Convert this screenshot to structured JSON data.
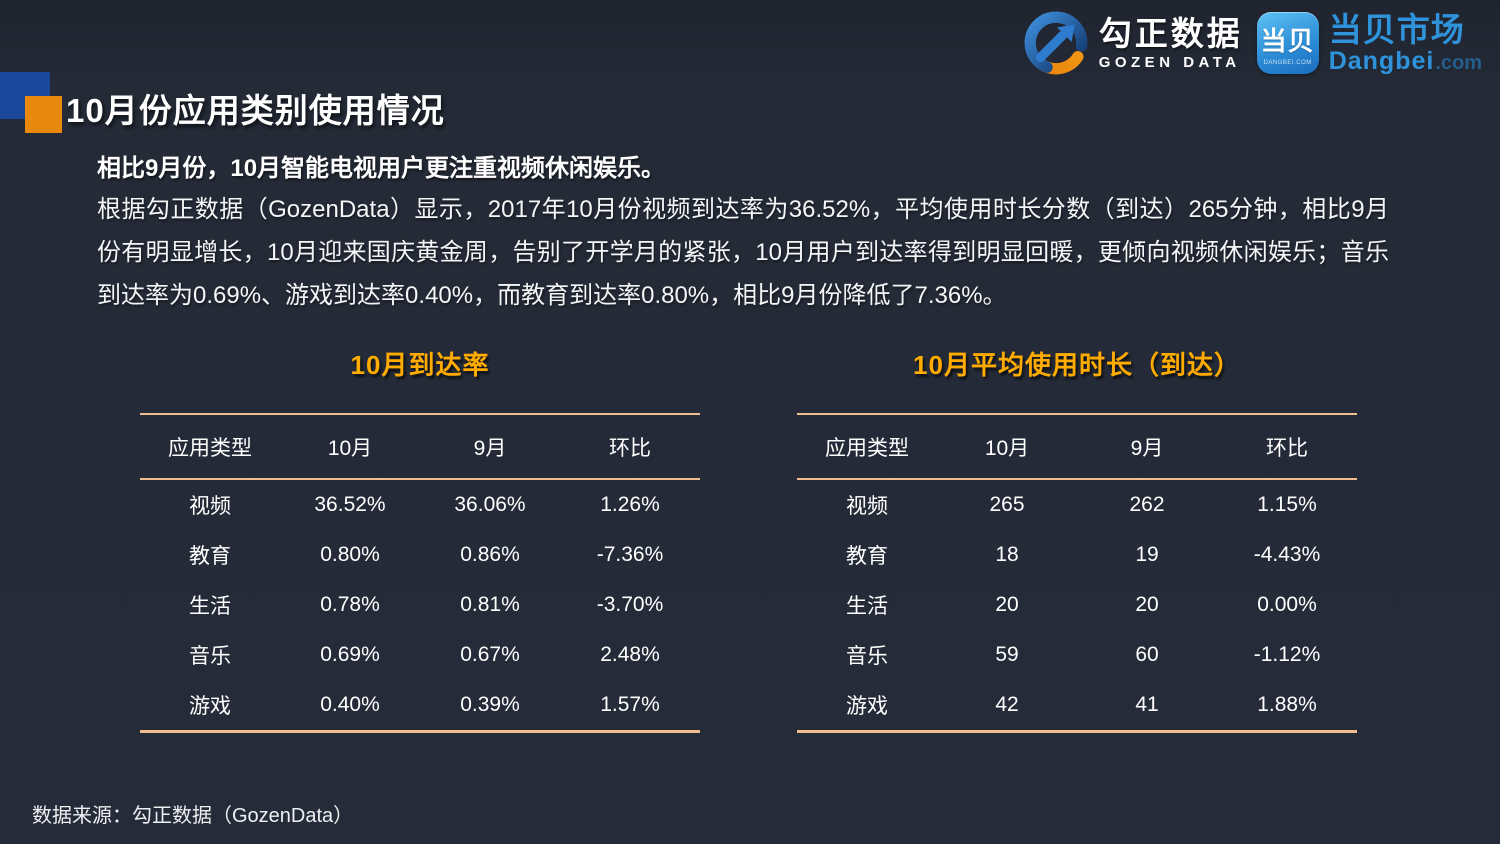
{
  "header": {
    "gozen": {
      "name_cn": "勾正数据",
      "name_en": "GOZEN DATA"
    },
    "dangbei": {
      "icon_text": "当贝",
      "icon_sub": "DANGBEI.COM",
      "name_cn": "当贝市场",
      "name_en": "Dangbei",
      "domain_suffix": ".com"
    }
  },
  "title": "10月份应用类别使用情况",
  "subtitle": "相比9月份，10月智能电视用户更注重视频休闲娱乐。",
  "paragraph": "根据勾正数据（GozenData）显示，2017年10月份视频到达率为36.52%，平均使用时长分数（到达）265分钟，相比9月份有明显增长，10月迎来国庆黄金周，告别了开学月的紧张，10月用户到达率得到明显回暖，更倾向视频休闲娱乐；音乐到达率为0.69%、游戏到达率0.40%，而教育到达率0.80%，相比9月份降低了7.36%。",
  "tables": [
    {
      "title": "10月到达率",
      "headers": [
        "应用类型",
        "10月",
        "9月",
        "环比"
      ],
      "rows": [
        [
          "视频",
          "36.52%",
          "36.06%",
          "1.26%"
        ],
        [
          "教育",
          "0.80%",
          "0.86%",
          "-7.36%"
        ],
        [
          "生活",
          "0.78%",
          "0.81%",
          "-3.70%"
        ],
        [
          "音乐",
          "0.69%",
          "0.67%",
          "2.48%"
        ],
        [
          "游戏",
          "0.40%",
          "0.39%",
          "1.57%"
        ]
      ]
    },
    {
      "title": "10月平均使用时长（到达）",
      "headers": [
        "应用类型",
        "10月",
        "9月",
        "环比"
      ],
      "rows": [
        [
          "视频",
          "265",
          "262",
          "1.15%"
        ],
        [
          "教育",
          "18",
          "19",
          "-4.43%"
        ],
        [
          "生活",
          "20",
          "20",
          "0.00%"
        ],
        [
          "音乐",
          "59",
          "60",
          "-1.12%"
        ],
        [
          "游戏",
          "42",
          "41",
          "1.88%"
        ]
      ]
    }
  ],
  "source": "数据来源：勾正数据（GozenData）",
  "icons": {
    "gozen-logo-icon": "circular blue swoosh ring with orange bottom arc and up-right arrow",
    "dangbei-app-icon": "blue rounded-square app badge"
  },
  "colors": {
    "background": "#252b38",
    "accent_gold": "#ffab00",
    "table_line": "#f0be8e",
    "marker_blue": "#1b489b",
    "marker_orange": "#e8890d",
    "dangbei_blue": "#2f93dc"
  }
}
